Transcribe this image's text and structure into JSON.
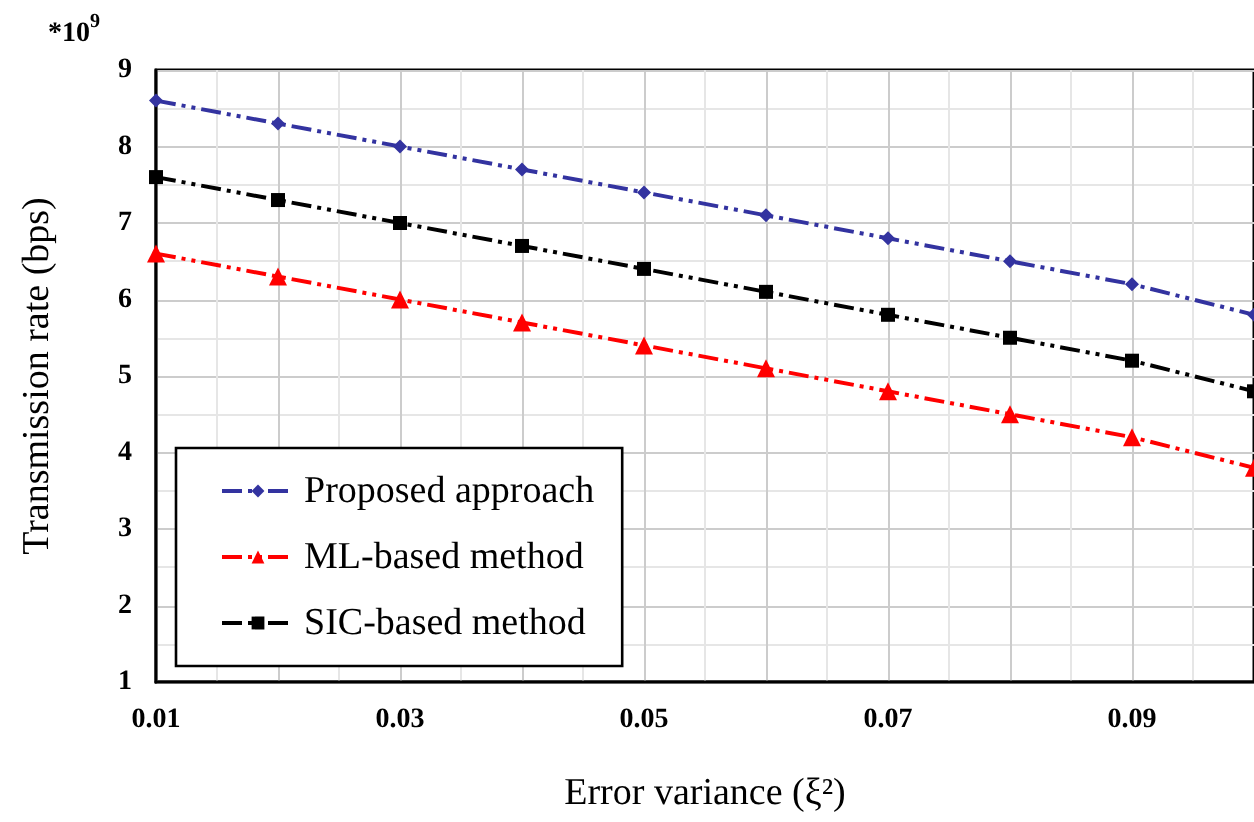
{
  "chart_data": {
    "type": "line",
    "xlabel": "Error variance (ξ²)",
    "ylabel": "Transmission rate (bps)",
    "annotations": [
      "*10$^{9}$"
    ],
    "x": [
      0.01,
      0.02,
      0.03,
      0.04,
      0.05,
      0.06,
      0.07,
      0.08,
      0.09,
      0.1
    ],
    "series": [
      {
        "name": "Proposed approach",
        "color": "#3333a0",
        "marker": "diamond",
        "values": [
          8.6,
          8.3,
          8.0,
          7.7,
          7.4,
          7.1,
          6.8,
          6.5,
          6.2,
          5.8
        ]
      },
      {
        "name": "ML-based method",
        "color": "#ff0000",
        "marker": "triangle",
        "values": [
          6.6,
          6.3,
          6.0,
          5.7,
          5.4,
          5.1,
          4.8,
          4.5,
          4.2,
          3.8
        ]
      },
      {
        "name": "SIC-based method",
        "color": "#000000",
        "marker": "square",
        "values": [
          7.6,
          7.3,
          7.0,
          6.7,
          6.4,
          6.1,
          5.8,
          5.5,
          5.2,
          4.8
        ]
      }
    ],
    "xlim": [
      0.01,
      0.1
    ],
    "xticks": [
      0.01,
      0.03,
      0.05,
      0.07,
      0.09
    ],
    "ylim": [
      1,
      9
    ],
    "yticks": [
      1,
      2,
      3,
      4,
      5,
      6,
      7,
      8,
      9
    ],
    "grid": true,
    "legend": "bottom left",
    "line_style": "dashed"
  }
}
